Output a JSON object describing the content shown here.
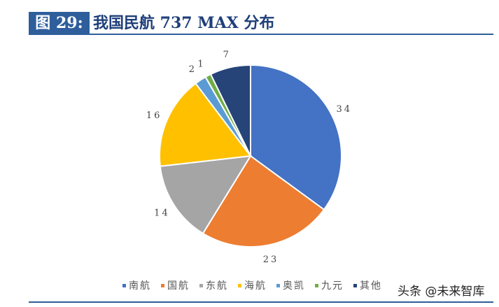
{
  "title": {
    "prefix": "图 29:",
    "text": "我国民航 737 MAX 分布"
  },
  "watermark": "头条 @未来智库",
  "chart_data": {
    "type": "pie",
    "title": "我国民航 737 MAX 分布",
    "categories": [
      "南航",
      "国航",
      "东航",
      "海航",
      "奥凯",
      "九元",
      "其他"
    ],
    "values": [
      34,
      23,
      14,
      16,
      2,
      1,
      7
    ],
    "colors": [
      "#4472c4",
      "#ed7d31",
      "#a5a5a5",
      "#ffc000",
      "#5b9bd5",
      "#70ad47",
      "#264478"
    ],
    "start": "12 o'clock, clockwise",
    "legend": "bottom"
  }
}
